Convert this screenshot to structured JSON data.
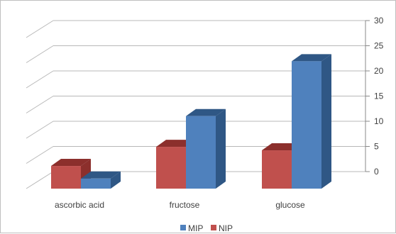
{
  "chart_data": {
    "type": "bar",
    "style": "3d-clustered-column",
    "categories": [
      "ascorbic acid",
      "fructose",
      "glucose"
    ],
    "series": [
      {
        "name": "NIP",
        "values": [
          4.5,
          8.3,
          7.6
        ],
        "color": "#c0504d",
        "side_color": "#8c2f2c"
      },
      {
        "name": "MIP",
        "values": [
          2.0,
          14.4,
          25.3
        ],
        "color": "#4f81bd",
        "side_color": "#2f5785"
      }
    ],
    "ylim": [
      0,
      30
    ],
    "yticks": [
      "0",
      "5",
      "10",
      "15",
      "20",
      "25",
      "30"
    ],
    "grid": true,
    "y_axis_side": "right",
    "legend_position": "bottom",
    "legend_order": [
      "MIP",
      "NIP"
    ],
    "title": "",
    "xlabel": "",
    "ylabel": ""
  }
}
